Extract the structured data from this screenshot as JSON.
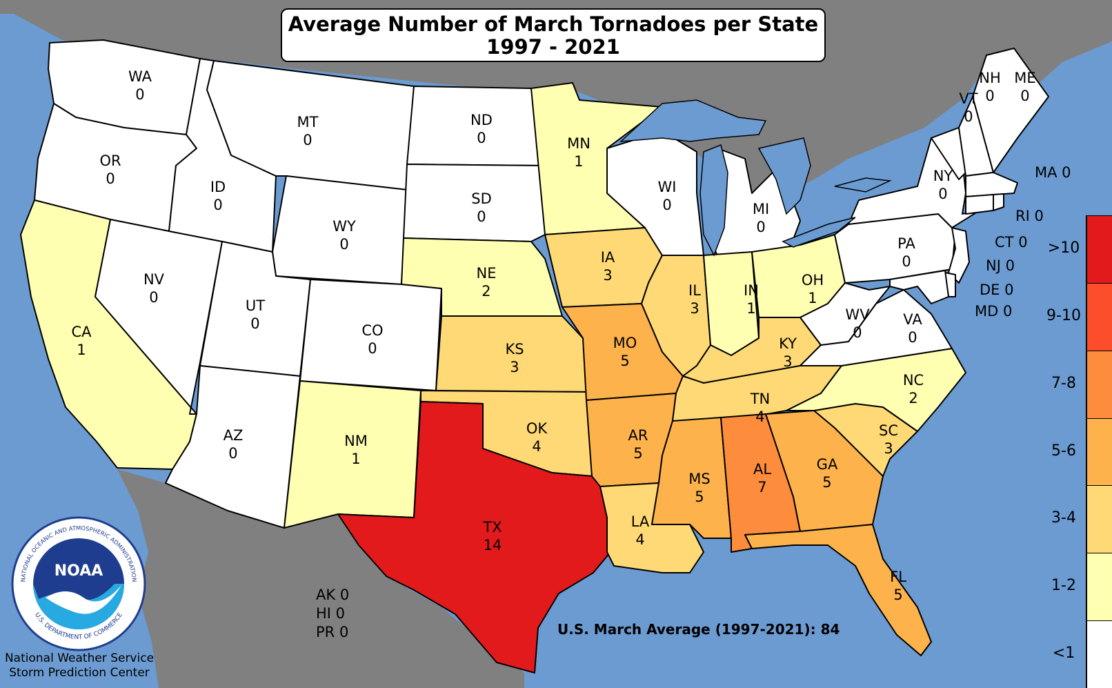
{
  "title": {
    "line1": "Average Number of March Tornadoes per State",
    "line2": "1997 - 2021"
  },
  "colors": {
    "water": "#6b9bd1",
    "land_outside": "#808080",
    "lt1": "#ffffff",
    "c1_2": "#ffffb2",
    "c3_4": "#fed976",
    "c5_6": "#feb24c",
    "c7_8": "#fd8d3c",
    "c9_10": "#fc4e2a",
    "c10plus": "#e31a1c"
  },
  "states": [
    {
      "abbr": "WA",
      "value": "0"
    },
    {
      "abbr": "OR",
      "value": "0"
    },
    {
      "abbr": "CA",
      "value": "1"
    },
    {
      "abbr": "NV",
      "value": "0"
    },
    {
      "abbr": "ID",
      "value": "0"
    },
    {
      "abbr": "MT",
      "value": "0"
    },
    {
      "abbr": "WY",
      "value": "0"
    },
    {
      "abbr": "UT",
      "value": "0"
    },
    {
      "abbr": "AZ",
      "value": "0"
    },
    {
      "abbr": "CO",
      "value": "0"
    },
    {
      "abbr": "NM",
      "value": "1"
    },
    {
      "abbr": "ND",
      "value": "0"
    },
    {
      "abbr": "SD",
      "value": "0"
    },
    {
      "abbr": "NE",
      "value": "2"
    },
    {
      "abbr": "KS",
      "value": "3"
    },
    {
      "abbr": "OK",
      "value": "4"
    },
    {
      "abbr": "TX",
      "value": "14"
    },
    {
      "abbr": "MN",
      "value": "1"
    },
    {
      "abbr": "IA",
      "value": "3"
    },
    {
      "abbr": "MO",
      "value": "5"
    },
    {
      "abbr": "AR",
      "value": "5"
    },
    {
      "abbr": "LA",
      "value": "4"
    },
    {
      "abbr": "WI",
      "value": "0"
    },
    {
      "abbr": "IL",
      "value": "3"
    },
    {
      "abbr": "MI",
      "value": "0"
    },
    {
      "abbr": "IN",
      "value": "1"
    },
    {
      "abbr": "OH",
      "value": "1"
    },
    {
      "abbr": "KY",
      "value": "3"
    },
    {
      "abbr": "TN",
      "value": "4"
    },
    {
      "abbr": "MS",
      "value": "5"
    },
    {
      "abbr": "AL",
      "value": "7"
    },
    {
      "abbr": "GA",
      "value": "5"
    },
    {
      "abbr": "FL",
      "value": "5"
    },
    {
      "abbr": "SC",
      "value": "3"
    },
    {
      "abbr": "NC",
      "value": "2"
    },
    {
      "abbr": "VA",
      "value": "0"
    },
    {
      "abbr": "WV",
      "value": "0"
    },
    {
      "abbr": "PA",
      "value": "0"
    },
    {
      "abbr": "NY",
      "value": "0"
    },
    {
      "abbr": "VT",
      "value": "0"
    },
    {
      "abbr": "NH",
      "value": "0"
    },
    {
      "abbr": "ME",
      "value": "0"
    },
    {
      "abbr": "MA",
      "value": "0"
    },
    {
      "abbr": "RI",
      "value": "0"
    },
    {
      "abbr": "CT",
      "value": "0"
    },
    {
      "abbr": "NJ",
      "value": "0"
    },
    {
      "abbr": "DE",
      "value": "0"
    },
    {
      "abbr": "MD",
      "value": "0"
    }
  ],
  "other_regions": [
    {
      "abbr": "AK",
      "value": "0"
    },
    {
      "abbr": "HI",
      "value": "0"
    },
    {
      "abbr": "PR",
      "value": "0"
    }
  ],
  "us_average": "U.S. March Average (1997-2021): 84",
  "credit": {
    "line1": "National Weather Service",
    "line2": "Storm Prediction Center"
  },
  "logo": {
    "text": "NOAA",
    "ring_top": "NATIONAL OCEANIC AND ATMOSPHERIC ADMINISTRATION",
    "ring_bottom": "U.S. DEPARTMENT OF COMMERCE"
  },
  "legend": [
    {
      "label": ">10",
      "color": "#e31a1c"
    },
    {
      "label": "9-10",
      "color": "#fc4e2a"
    },
    {
      "label": "7-8",
      "color": "#fd8d3c"
    },
    {
      "label": "5-6",
      "color": "#feb24c"
    },
    {
      "label": "3-4",
      "color": "#fed976"
    },
    {
      "label": "1-2",
      "color": "#ffffb2"
    },
    {
      "label": "<1",
      "color": "#ffffff"
    }
  ]
}
